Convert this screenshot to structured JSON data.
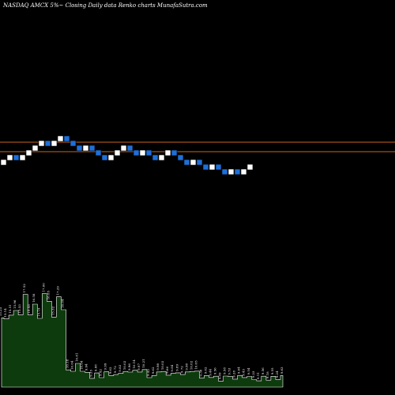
{
  "header": {
    "title": "NASDAQ AMCX  5%~  Closing Daily data  Renko  charts MunafaSutra.com"
  },
  "colors": {
    "background": "#000000",
    "up_brick_fill": "#ffffff",
    "down_brick_fill": "#1e6fd9",
    "reference_line": "#c8641e",
    "volume_fill": "#0d3b0d",
    "volume_outline": "#ffffff"
  },
  "chart_data": [
    {
      "type": "renko",
      "brick_size_percent": 5,
      "reference_lines": 2,
      "bricks": [
        "up",
        "up",
        "down",
        "up",
        "up",
        "up",
        "up",
        "down",
        "up",
        "up",
        "down",
        "down",
        "down",
        "up",
        "down",
        "down",
        "down",
        "up",
        "up",
        "up",
        "down",
        "down",
        "up",
        "down",
        "down",
        "up",
        "up",
        "down",
        "down",
        "down",
        "up",
        "down",
        "down",
        "up",
        "down",
        "down",
        "up",
        "down",
        "up",
        "up"
      ]
    },
    {
      "type": "area",
      "series": [
        {
          "labels": [
            "15.25",
            "15.14",
            "15.51",
            "15.96",
            "15.53",
            "17.52",
            "15.53",
            "16.58",
            "15.19",
            "17.60",
            "16.85",
            "15.32",
            "17.29",
            "16.04",
            "10.18",
            "10.04",
            "10.81",
            "10.04",
            "9.94",
            "9.35",
            "9.88",
            "9.42",
            "9.99",
            "9.62",
            "9.72",
            "9.83",
            "10.02",
            "9.96",
            "10.14",
            "9.97",
            "10.21",
            "9.42",
            "9.62",
            "9.98",
            "10.02",
            "9.66",
            "9.84",
            "9.89",
            "9.72",
            "9.98",
            "10.02",
            "10.05",
            "9.38",
            "9.62",
            "9.44",
            "9.56",
            "9.09",
            "9.58",
            "9.53",
            "9.28",
            "9.64",
            "9.43",
            "9.54",
            "9.23",
            "9.11",
            "9.56",
            "9.18",
            "9.55",
            "9.24",
            "9.63"
          ],
          "values": [
            15.25,
            15.14,
            15.51,
            15.96,
            15.53,
            17.52,
            15.53,
            16.58,
            15.19,
            17.6,
            16.85,
            15.32,
            17.29,
            16.04,
            10.18,
            10.04,
            10.81,
            10.04,
            9.94,
            9.35,
            9.88,
            9.42,
            9.99,
            9.62,
            9.72,
            9.83,
            10.02,
            9.96,
            10.14,
            9.97,
            10.21,
            9.42,
            9.62,
            9.98,
            10.02,
            9.66,
            9.84,
            9.89,
            9.72,
            9.98,
            10.02,
            10.05,
            9.38,
            9.62,
            9.44,
            9.56,
            9.09,
            9.58,
            9.53,
            9.28,
            9.64,
            9.43,
            9.54,
            9.23,
            9.11,
            9.56,
            9.18,
            9.55,
            9.24,
            9.63
          ]
        }
      ]
    }
  ]
}
